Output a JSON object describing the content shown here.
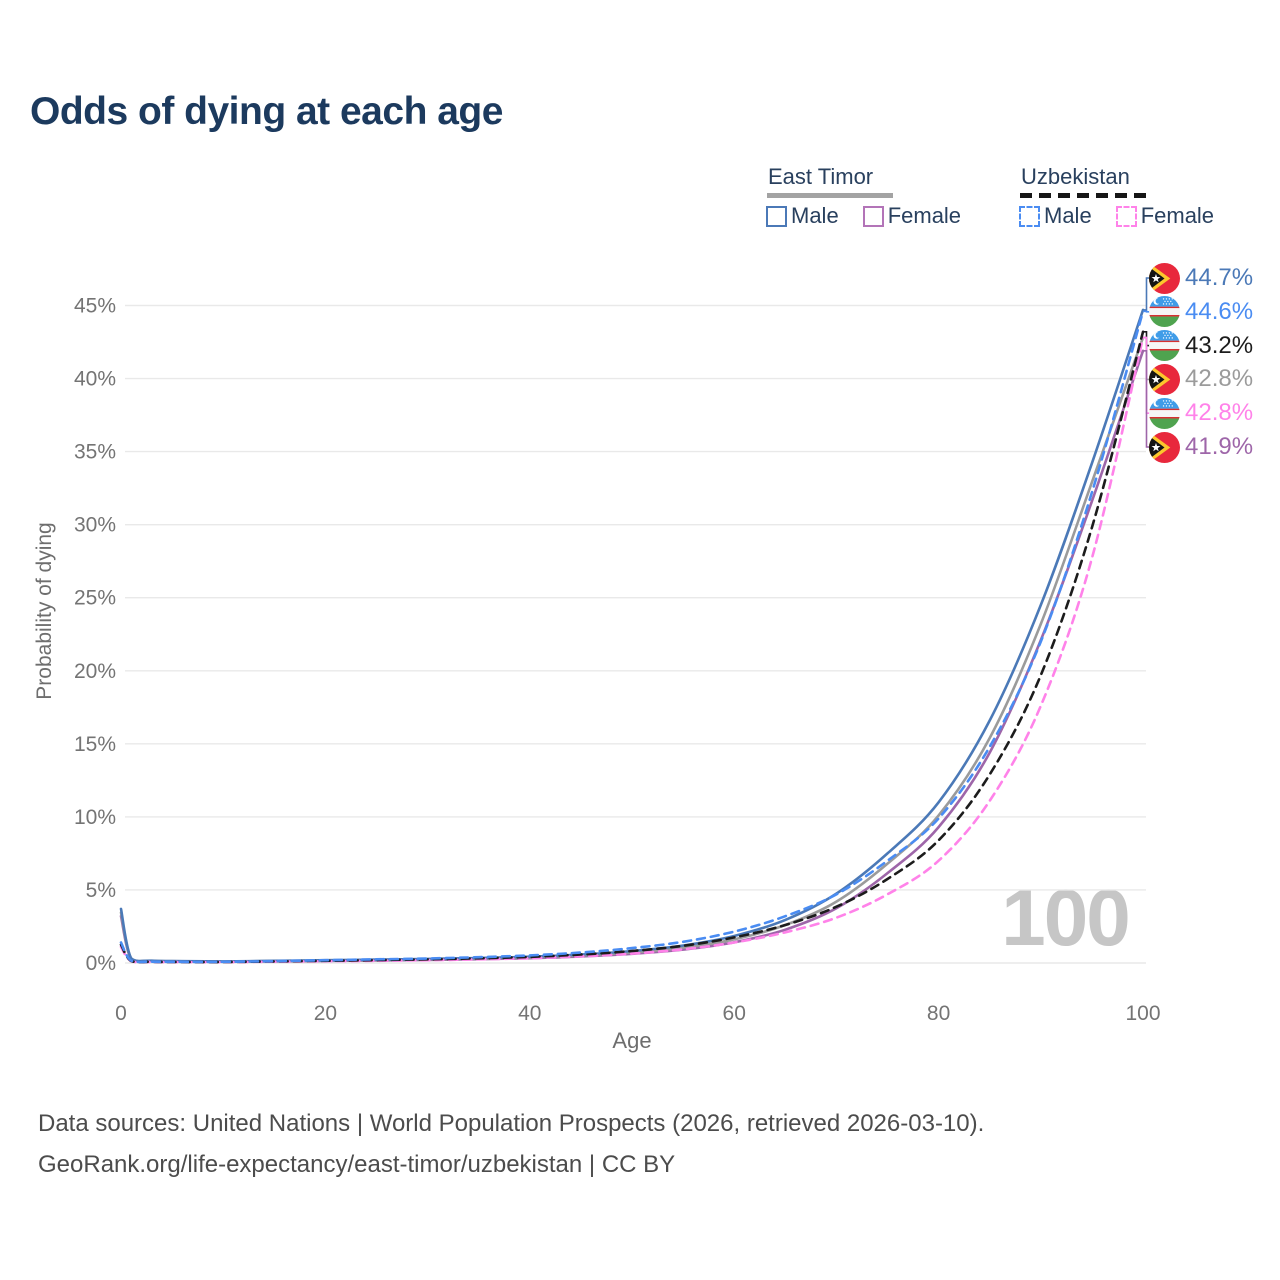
{
  "title": "Odds of dying at each age",
  "legend": {
    "groups": [
      {
        "label": "East Timor",
        "line_style": "solid",
        "underline_color": "#a3a3a3",
        "items": [
          {
            "label": "Male",
            "color": "#4b79b7",
            "dashed": false
          },
          {
            "label": "Female",
            "color": "#b374b8",
            "dashed": false
          }
        ]
      },
      {
        "label": "Uzbekistan",
        "line_style": "dashed",
        "underline_color": "#161616",
        "items": [
          {
            "label": "Male",
            "color": "#4a8cf2",
            "dashed": true
          },
          {
            "label": "Female",
            "color": "#ff82e9",
            "dashed": true
          }
        ]
      }
    ]
  },
  "chart_data": {
    "type": "line",
    "title": "Odds of dying at each age",
    "xlabel": "Age",
    "ylabel": "Probability of dying",
    "xlim": [
      0,
      100
    ],
    "ylim": [
      0,
      45
    ],
    "grid": "horizontal",
    "watermark": "100",
    "x_ticks": [
      {
        "v": 0,
        "label": "0"
      },
      {
        "v": 20,
        "label": "20"
      },
      {
        "v": 40,
        "label": "40"
      },
      {
        "v": 60,
        "label": "60"
      },
      {
        "v": 80,
        "label": "80"
      },
      {
        "v": 100,
        "label": "100"
      }
    ],
    "y_ticks": [
      {
        "v": 0,
        "label": "0%"
      },
      {
        "v": 5,
        "label": "5%"
      },
      {
        "v": 10,
        "label": "10%"
      },
      {
        "v": 15,
        "label": "15%"
      },
      {
        "v": 20,
        "label": "20%"
      },
      {
        "v": 25,
        "label": "25%"
      },
      {
        "v": 30,
        "label": "30%"
      },
      {
        "v": 35,
        "label": "35%"
      },
      {
        "v": 40,
        "label": "40%"
      },
      {
        "v": 45,
        "label": "45%"
      }
    ],
    "ages": [
      0,
      1,
      3,
      5,
      10,
      15,
      20,
      25,
      30,
      35,
      40,
      45,
      50,
      55,
      60,
      65,
      70,
      75,
      80,
      85,
      90,
      95,
      100
    ],
    "series": [
      {
        "name": "East Timor Female",
        "color": "#9e66a9",
        "dashed": false,
        "values": [
          3.2,
          0.28,
          0.14,
          0.11,
          0.09,
          0.11,
          0.14,
          0.17,
          0.21,
          0.26,
          0.33,
          0.45,
          0.63,
          0.92,
          1.42,
          2.28,
          3.75,
          6.15,
          9.3,
          14.4,
          22.1,
          31.6,
          41.9
        ]
      },
      {
        "name": "East Timor",
        "color": "#9b9b9b",
        "dashed": false,
        "values": [
          3.45,
          0.3,
          0.15,
          0.12,
          0.1,
          0.13,
          0.17,
          0.2,
          0.25,
          0.3,
          0.38,
          0.51,
          0.72,
          1.05,
          1.62,
          2.6,
          4.2,
          6.8,
          10.1,
          15.4,
          23.2,
          32.9,
          42.8
        ]
      },
      {
        "name": "East Timor Male",
        "color": "#4b79b7",
        "dashed": false,
        "values": [
          3.7,
          0.32,
          0.16,
          0.13,
          0.11,
          0.15,
          0.19,
          0.23,
          0.28,
          0.34,
          0.43,
          0.58,
          0.82,
          1.2,
          1.85,
          2.95,
          4.75,
          7.5,
          11.0,
          16.6,
          24.5,
          34.2,
          44.7
        ]
      },
      {
        "name": "Uzbekistan Female",
        "color": "#ff82e9",
        "dashed": true,
        "values": [
          1.1,
          0.12,
          0.07,
          0.06,
          0.06,
          0.09,
          0.12,
          0.15,
          0.19,
          0.25,
          0.33,
          0.46,
          0.64,
          0.94,
          1.4,
          2.1,
          3.1,
          4.7,
          7.0,
          11.1,
          17.6,
          27.7,
          42.8
        ]
      },
      {
        "name": "Uzbekistan",
        "color": "#1c1c1c",
        "dashed": true,
        "values": [
          1.25,
          0.14,
          0.08,
          0.07,
          0.07,
          0.11,
          0.15,
          0.2,
          0.25,
          0.32,
          0.42,
          0.58,
          0.82,
          1.18,
          1.75,
          2.6,
          3.85,
          5.75,
          8.4,
          12.9,
          19.7,
          29.8,
          43.2
        ]
      },
      {
        "name": "Uzbekistan Male",
        "color": "#4a8cf2",
        "dashed": true,
        "values": [
          1.4,
          0.16,
          0.09,
          0.08,
          0.08,
          0.13,
          0.19,
          0.25,
          0.31,
          0.4,
          0.52,
          0.72,
          1.02,
          1.45,
          2.15,
          3.2,
          4.7,
          7.0,
          9.9,
          14.8,
          22.0,
          32.2,
          44.6
        ]
      }
    ],
    "end_labels": [
      {
        "text": "44.7%",
        "value": 44.7,
        "color": "#4b79b7",
        "flag": "east-timor",
        "series": "East Timor Male"
      },
      {
        "text": "44.6%",
        "value": 44.6,
        "color": "#4a8cf2",
        "flag": "uzbekistan",
        "series": "Uzbekistan Male"
      },
      {
        "text": "43.2%",
        "value": 43.2,
        "color": "#1c1c1c",
        "flag": "uzbekistan",
        "series": "Uzbekistan"
      },
      {
        "text": "42.8%",
        "value": 42.8,
        "color": "#9b9b9b",
        "flag": "east-timor",
        "series": "East Timor"
      },
      {
        "text": "42.8%",
        "value": 42.8,
        "color": "#ff82e9",
        "flag": "uzbekistan",
        "series": "Uzbekistan Female"
      },
      {
        "text": "41.9%",
        "value": 41.9,
        "color": "#9e66a9",
        "flag": "east-timor",
        "series": "East Timor Female"
      }
    ]
  },
  "footer": {
    "line1": "Data sources: United Nations | World Population Prospects (2026, retrieved 2026-03-10).",
    "line2": "GeoRank.org/life-expectancy/east-timor/uzbekistan | CC BY"
  }
}
